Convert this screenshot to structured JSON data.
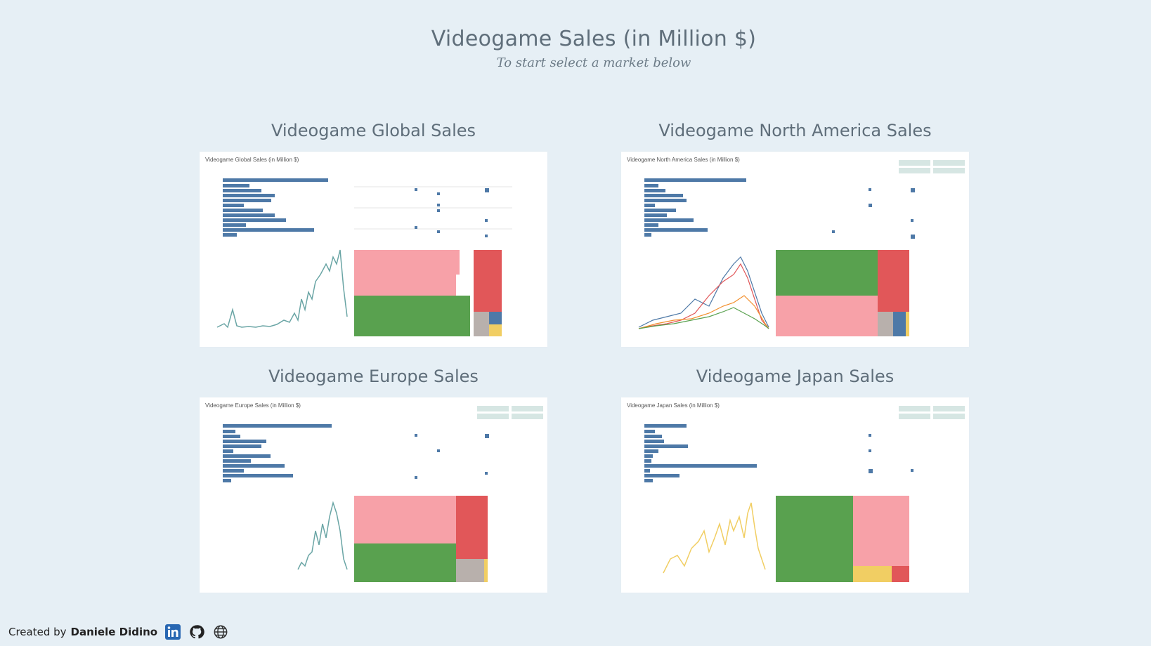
{
  "page": {
    "title": "Videogame Sales (in Million $)",
    "subtitle": "To start select a market below"
  },
  "panels": [
    {
      "id": "global",
      "title": "Videogame Global Sales",
      "thumb_title": "Videogame Global Sales (in Million $)"
    },
    {
      "id": "north_america",
      "title": "Videogame North America Sales",
      "thumb_title": "Videogame North America Sales (in Million $)"
    },
    {
      "id": "europe",
      "title": "Videogame Europe Sales",
      "thumb_title": "Videogame Europe Sales (in Million $)"
    },
    {
      "id": "japan",
      "title": "Videogame Japan Sales",
      "thumb_title": "Videogame Japan Sales (in Million $)"
    }
  ],
  "footer": {
    "prefix": "Created by",
    "author": "Daniele Didino",
    "icons": [
      "linkedin-icon",
      "github-icon",
      "website-globe-icon"
    ]
  },
  "colors": {
    "background": "#e6eff5",
    "bar": "#4e79a7",
    "line_teal": "#6aa5a5",
    "line_yellow": "#f1ce63",
    "tree_pink": "#f7a1a8",
    "tree_green": "#59a14f",
    "tree_red": "#e15759",
    "tree_gray": "#b8b0ac"
  }
}
